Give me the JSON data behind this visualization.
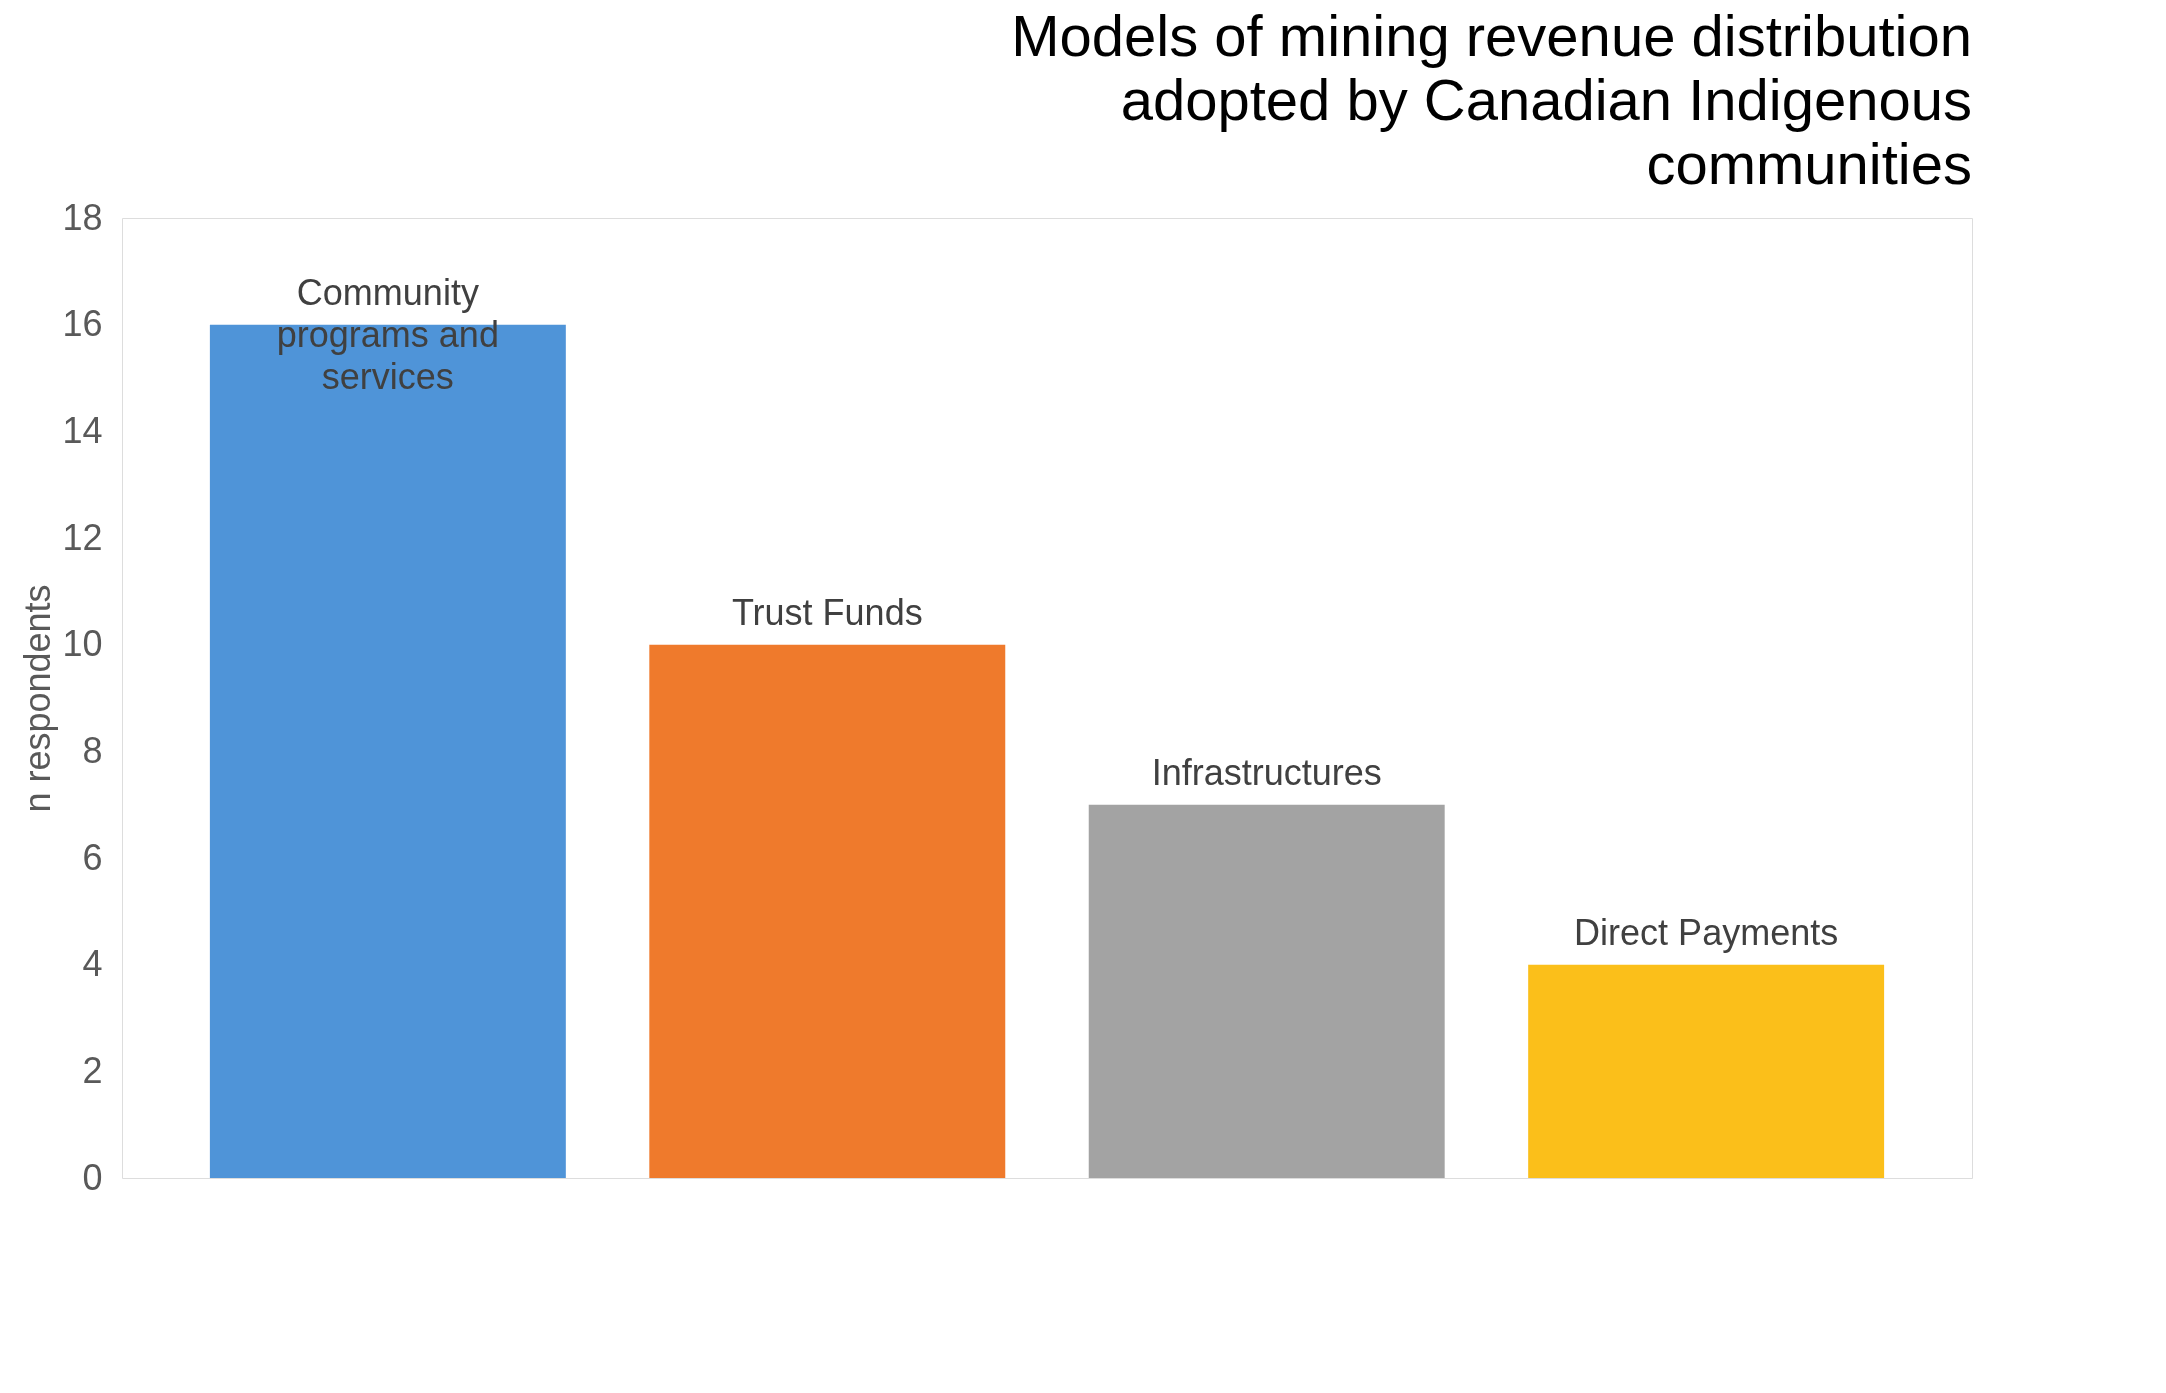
{
  "chart_data": {
    "type": "bar",
    "title": "Models of mining revenue distribution adopted by Canadian Indigenous communities",
    "ylabel": "n respondents",
    "categories": [
      "Community programs and services",
      "Trust Funds",
      "Infrastructures",
      "Direct Payments"
    ],
    "values": [
      16,
      10,
      7,
      4
    ],
    "colors": [
      "#4f94d8",
      "#ef7a2c",
      "#a3a3a3",
      "#fbbf1a"
    ],
    "ylim": [
      0,
      18
    ],
    "yticks": [
      0,
      2,
      4,
      6,
      8,
      10,
      12,
      14,
      16,
      18
    ],
    "grid": false
  }
}
